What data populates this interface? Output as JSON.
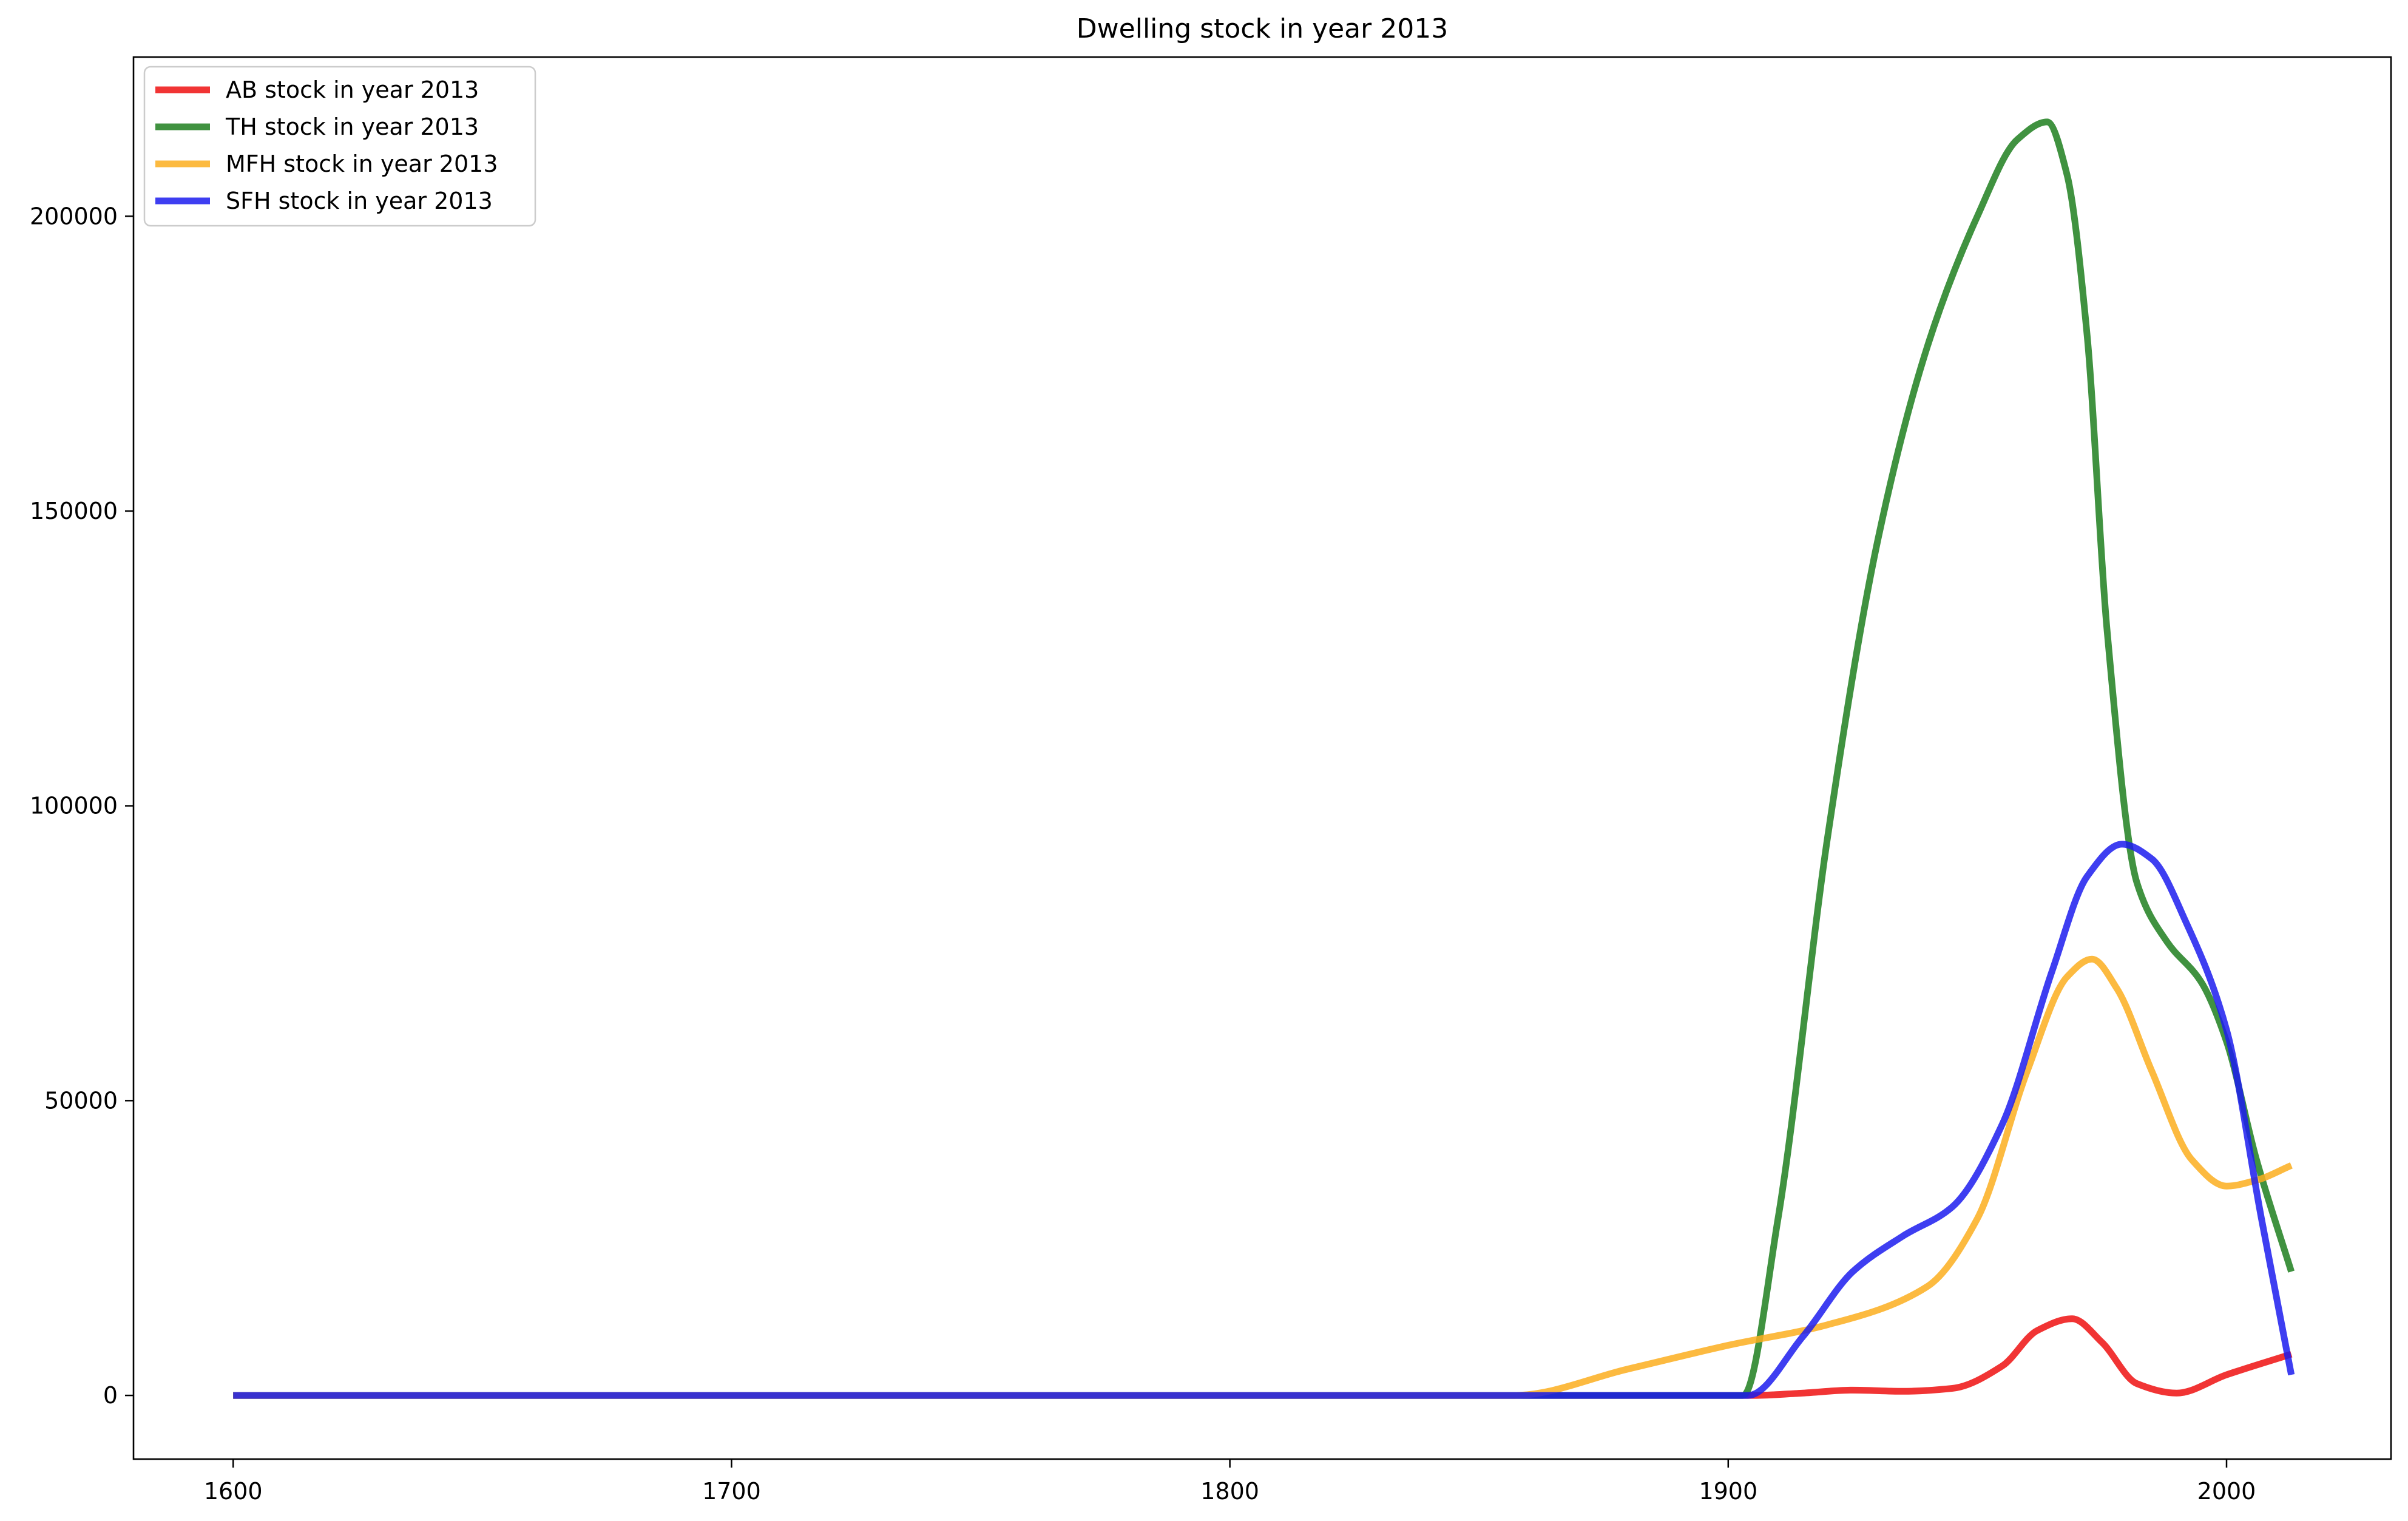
{
  "chart_data": {
    "type": "line",
    "title": "Dwelling stock in year 2013",
    "xlabel": "",
    "ylabel": "",
    "xlim": [
      1580,
      2033
    ],
    "ylim": [
      -10800,
      227000
    ],
    "xticks": [
      1600,
      1700,
      1800,
      1900,
      2000
    ],
    "yticks": [
      0,
      50000,
      100000,
      150000,
      200000
    ],
    "grid": false,
    "legend_position": "top-left",
    "series": [
      {
        "name": "AB stock in year 2013",
        "color": "#ee1111",
        "x": [
          1600,
          1700,
          1800,
          1905,
          1915,
          1925,
          1935,
          1945,
          1955,
          1962,
          1969,
          1975,
          1982,
          1990,
          2000,
          2013
        ],
        "y": [
          0,
          0,
          0,
          0,
          400,
          900,
          700,
          1200,
          5000,
          11000,
          13000,
          9000,
          2000,
          400,
          3500,
          7000
        ]
      },
      {
        "name": "TH stock in year 2013",
        "color": "#1f7f1f",
        "x": [
          1600,
          1700,
          1800,
          1903,
          1910,
          1920,
          1930,
          1940,
          1950,
          1958,
          1964,
          1968,
          1972,
          1976,
          1982,
          1988,
          1995,
          2000,
          2006,
          2013
        ],
        "y": [
          0,
          0,
          0,
          0,
          30000,
          95000,
          145000,
          178000,
          200000,
          213000,
          216000,
          207000,
          180000,
          130000,
          87000,
          77000,
          70000,
          60000,
          40000,
          21000
        ]
      },
      {
        "name": "MFH stock in year 2013",
        "color": "#fcae1e",
        "x": [
          1600,
          1700,
          1800,
          1857,
          1880,
          1900,
          1920,
          1940,
          1950,
          1960,
          1968,
          1973,
          1978,
          1985,
          1993,
          2000,
          2006,
          2013
        ],
        "y": [
          0,
          0,
          0,
          0,
          4500,
          8500,
          12000,
          18500,
          30000,
          55000,
          71000,
          74000,
          69000,
          55000,
          40000,
          35500,
          36500,
          39000
        ]
      },
      {
        "name": "SFH stock in year 2013",
        "color": "#1c1cee",
        "x": [
          1600,
          1700,
          1800,
          1904,
          1915,
          1925,
          1935,
          1945,
          1955,
          1965,
          1972,
          1979,
          1985,
          1992,
          2000,
          2007,
          2013
        ],
        "y": [
          0,
          0,
          0,
          0,
          10000,
          21000,
          27000,
          32000,
          46000,
          72000,
          88000,
          93500,
          91000,
          80000,
          62000,
          30000,
          3500
        ]
      }
    ]
  }
}
